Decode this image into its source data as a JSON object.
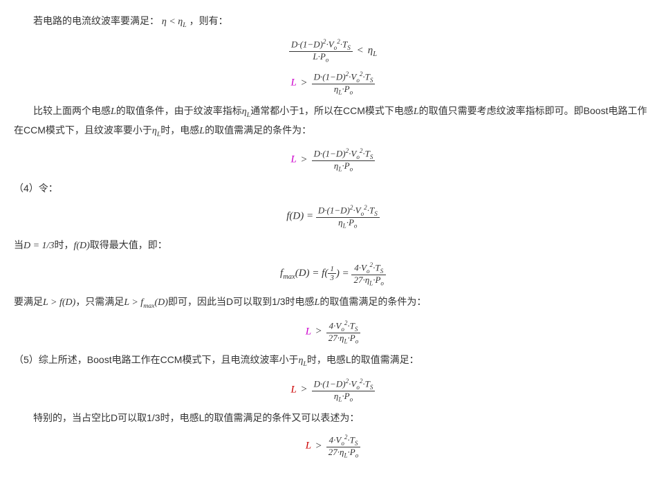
{
  "p1": "若电路的电流纹波率要满足：",
  "p1_math": "η < η",
  "p1_sub": "L",
  "p1_tail": "，则有：",
  "eq1": {
    "num": "D·(1−D)<sup>2</sup>·V<sub>o</sub><sup>2</sup>·T<sub>S</sub>",
    "den": "L·P<sub>o</sub>",
    "op": " < ",
    "rhs": "η<sub>L</sub>"
  },
  "eq2": {
    "lhs": "L",
    "op": " > ",
    "num": "D·(1−D)<sup>2</sup>·V<sub>o</sub><sup>2</sup>·T<sub>S</sub>",
    "den": "η<sub>L</sub>·P<sub>o</sub>",
    "lhs_color": "#cc00cc"
  },
  "p2a": "比较上面两个电感",
  "p2b": "的取值条件，由于纹波率指标",
  "p2c": "通常都小于1，所以在CCM模式下电感",
  "p2d": "的取值只需要考虑纹波率指标即可。即Boost电路工作在CCM模式下，且纹波率要小于",
  "p2e": "时，电感",
  "p2f": "的取值需满足的条件为：",
  "eq3": {
    "lhs": "L",
    "op": " > ",
    "num": "D·(1−D)<sup>2</sup>·V<sub>o</sub><sup>2</sup>·T<sub>S</sub>",
    "den": "η<sub>L</sub>·P<sub>o</sub>",
    "lhs_color": "#cc00cc"
  },
  "p3": "（4）令：",
  "eq4": {
    "lhs": "f(D) = ",
    "num": "D·(1−D)<sup>2</sup>·V<sub>o</sub><sup>2</sup>·T<sub>S</sub>",
    "den": "η<sub>L</sub>·P<sub>o</sub>"
  },
  "p4a": "当",
  "p4b": "D = 1/3",
  "p4c": "时，",
  "p4d": "f(D)",
  "p4e": "取得最大值，即：",
  "eq5": {
    "lhs": "f<sub>max</sub>(D) = f(",
    "arg_num": "1",
    "arg_den": "3",
    "mid": ") = ",
    "num": "4·V<sub>o</sub><sup>2</sup>·T<sub>S</sub>",
    "den": "27·η<sub>L</sub>·P<sub>o</sub>"
  },
  "p5a": "要满足",
  "p5b": "L > f(D)",
  "p5c": "，只需满足",
  "p5d": "L > f",
  "p5d_sub": "max",
  "p5d2": "(D)",
  "p5e": "即可，因此当D可以取到1/3时电感",
  "p5f": "的取值需满足的条件为：",
  "eq6": {
    "lhs": "L",
    "op": " > ",
    "num": "4·V<sub>o</sub><sup>2</sup>·T<sub>S</sub>",
    "den": "27·η<sub>L</sub>·P<sub>o</sub>",
    "lhs_color": "#cc00cc"
  },
  "p6a": "（5）综上所述，Boost电路工作在CCM模式下，且电流纹波率小于",
  "p6b": "时，电感L的取值需满足：",
  "eq7": {
    "lhs": "L",
    "op": " > ",
    "num": "D·(1−D)<sup>2</sup>·V<sub>o</sub><sup>2</sup>·T<sub>S</sub>",
    "den": "η<sub>L</sub>·P<sub>o</sub>",
    "lhs_color": "#cc0000"
  },
  "p7": "特别的，当占空比D可以取1/3时，电感L的取值需满足的条件又可以表述为：",
  "eq8": {
    "lhs": "L",
    "op": " > ",
    "num": "4·V<sub>o</sub><sup>2</sup>·T<sub>S</sub>",
    "den": "27·η<sub>L</sub>·P<sub>o</sub>",
    "lhs_color": "#cc0000"
  },
  "L_var": "L",
  "etaL": "η",
  "etaL_sub": "L"
}
